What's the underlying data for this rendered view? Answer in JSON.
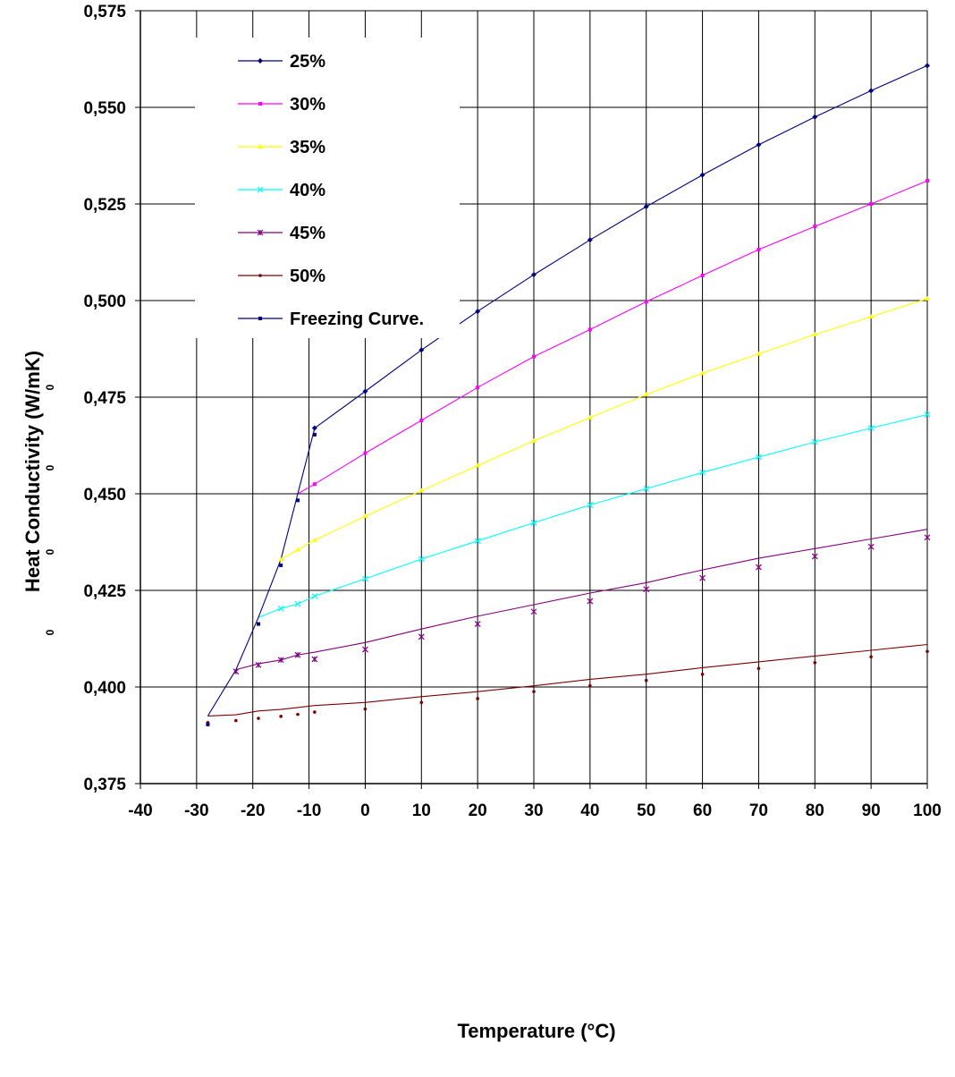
{
  "chart_data": {
    "type": "line",
    "xlabel": "Temperature (°C)",
    "ylabel": "Heat Conductivity (W/mK)",
    "ylabel_artifacts": [
      "0",
      "0",
      "0",
      "0"
    ],
    "xlim": [
      -40,
      100
    ],
    "ylim": [
      0.375,
      0.575
    ],
    "x_ticks": [
      "-40",
      "-30",
      "-20",
      "-10",
      "0",
      "10",
      "20",
      "30",
      "40",
      "50",
      "60",
      "70",
      "80",
      "90",
      "100"
    ],
    "y_ticks": [
      "0,375",
      "0,400",
      "0,425",
      "0,450",
      "0,475",
      "0,500",
      "0,525",
      "0,550",
      "0,575"
    ],
    "grid": true,
    "legend_position": "top-left",
    "series": [
      {
        "name": "25%",
        "color": "#000080",
        "marker": "diamond",
        "line": [
          [
            -9,
            0.467
          ],
          [
            0,
            0.4765
          ],
          [
            10,
            0.4872
          ],
          [
            20,
            0.4972
          ],
          [
            30,
            0.5067
          ],
          [
            40,
            0.5157
          ],
          [
            50,
            0.5243
          ],
          [
            60,
            0.5325
          ],
          [
            70,
            0.5403
          ],
          [
            80,
            0.5475
          ],
          [
            90,
            0.5543
          ],
          [
            100,
            0.5608
          ]
        ],
        "points": [
          [
            -9,
            0.467
          ],
          [
            0,
            0.4765
          ],
          [
            10,
            0.4872
          ],
          [
            20,
            0.4972
          ],
          [
            30,
            0.5067
          ],
          [
            40,
            0.5157
          ],
          [
            50,
            0.5243
          ],
          [
            60,
            0.5325
          ],
          [
            70,
            0.5403
          ],
          [
            80,
            0.5475
          ],
          [
            90,
            0.5543
          ],
          [
            100,
            0.5608
          ]
        ]
      },
      {
        "name": "30%",
        "color": "#FF00FF",
        "marker": "square",
        "line": [
          [
            -12,
            0.45
          ],
          [
            -9,
            0.4525
          ],
          [
            0,
            0.4605
          ],
          [
            10,
            0.469
          ],
          [
            20,
            0.4775
          ],
          [
            30,
            0.4855
          ],
          [
            40,
            0.4925
          ],
          [
            50,
            0.4997
          ],
          [
            60,
            0.5065
          ],
          [
            70,
            0.5132
          ],
          [
            80,
            0.5192
          ],
          [
            90,
            0.525
          ],
          [
            100,
            0.531
          ]
        ],
        "points": [
          [
            -9,
            0.4525
          ],
          [
            0,
            0.4605
          ],
          [
            10,
            0.469
          ],
          [
            20,
            0.4775
          ],
          [
            30,
            0.4855
          ],
          [
            40,
            0.4925
          ],
          [
            50,
            0.4997
          ],
          [
            60,
            0.5065
          ],
          [
            70,
            0.5132
          ],
          [
            80,
            0.5192
          ],
          [
            90,
            0.525
          ],
          [
            100,
            0.531
          ]
        ]
      },
      {
        "name": "35%",
        "color": "#FFFF00",
        "marker": "triangle",
        "line": [
          [
            -15,
            0.433
          ],
          [
            -12,
            0.4355
          ],
          [
            -9,
            0.438
          ],
          [
            0,
            0.4442
          ],
          [
            10,
            0.4508
          ],
          [
            20,
            0.4573
          ],
          [
            30,
            0.4637
          ],
          [
            40,
            0.4697
          ],
          [
            50,
            0.4757
          ],
          [
            60,
            0.4812
          ],
          [
            70,
            0.4862
          ],
          [
            80,
            0.4912
          ],
          [
            90,
            0.4958
          ],
          [
            100,
            0.5005
          ]
        ],
        "points": [
          [
            -15,
            0.433
          ],
          [
            -12,
            0.4355
          ],
          [
            -9,
            0.438
          ],
          [
            0,
            0.4442
          ],
          [
            10,
            0.4508
          ],
          [
            20,
            0.4573
          ],
          [
            30,
            0.4637
          ],
          [
            40,
            0.4697
          ],
          [
            50,
            0.4757
          ],
          [
            60,
            0.4812
          ],
          [
            70,
            0.4862
          ],
          [
            80,
            0.4912
          ],
          [
            90,
            0.4958
          ],
          [
            100,
            0.5005
          ]
        ]
      },
      {
        "name": "40%",
        "color": "#00FFFF",
        "marker": "x",
        "line": [
          [
            -19,
            0.418
          ],
          [
            -15,
            0.4203
          ],
          [
            -12,
            0.4215
          ],
          [
            -9,
            0.4235
          ],
          [
            0,
            0.428
          ],
          [
            10,
            0.4331
          ],
          [
            20,
            0.4378
          ],
          [
            30,
            0.4425
          ],
          [
            40,
            0.4471
          ],
          [
            50,
            0.4513
          ],
          [
            60,
            0.4555
          ],
          [
            70,
            0.4595
          ],
          [
            80,
            0.4634
          ],
          [
            90,
            0.467
          ],
          [
            100,
            0.4705
          ]
        ],
        "points": [
          [
            -15,
            0.4203
          ],
          [
            -12,
            0.4215
          ],
          [
            -9,
            0.4235
          ],
          [
            0,
            0.428
          ],
          [
            10,
            0.4331
          ],
          [
            20,
            0.4378
          ],
          [
            30,
            0.4425
          ],
          [
            40,
            0.4471
          ],
          [
            50,
            0.4513
          ],
          [
            60,
            0.4555
          ],
          [
            70,
            0.4595
          ],
          [
            80,
            0.4634
          ],
          [
            90,
            0.467
          ],
          [
            100,
            0.4705
          ]
        ]
      },
      {
        "name": "45%",
        "color": "#800080",
        "marker": "star",
        "line": [
          [
            -23,
            0.4045
          ],
          [
            -19,
            0.406
          ],
          [
            -15,
            0.407
          ],
          [
            -12,
            0.4083
          ],
          [
            -9,
            0.409
          ],
          [
            0,
            0.4115
          ],
          [
            10,
            0.415
          ],
          [
            20,
            0.4183
          ],
          [
            30,
            0.4213
          ],
          [
            40,
            0.4243
          ],
          [
            50,
            0.427
          ],
          [
            60,
            0.4303
          ],
          [
            70,
            0.4333
          ],
          [
            80,
            0.4358
          ],
          [
            90,
            0.4383
          ],
          [
            100,
            0.4408
          ]
        ],
        "points": [
          [
            -23,
            0.404
          ],
          [
            -19,
            0.4057
          ],
          [
            -15,
            0.407
          ],
          [
            -12,
            0.4083
          ],
          [
            -9,
            0.4072
          ],
          [
            0,
            0.4097
          ],
          [
            10,
            0.413
          ],
          [
            20,
            0.4163
          ],
          [
            30,
            0.4195
          ],
          [
            40,
            0.4222
          ],
          [
            50,
            0.4253
          ],
          [
            60,
            0.4282
          ],
          [
            70,
            0.431
          ],
          [
            80,
            0.4338
          ],
          [
            90,
            0.4363
          ],
          [
            100,
            0.4387
          ]
        ]
      },
      {
        "name": "50%",
        "color": "#800000",
        "marker": "dot",
        "line": [
          [
            -28,
            0.3925
          ],
          [
            -23,
            0.3928
          ],
          [
            -19,
            0.3938
          ],
          [
            -15,
            0.3942
          ],
          [
            -12,
            0.3947
          ],
          [
            -9,
            0.3952
          ],
          [
            0,
            0.396
          ],
          [
            10,
            0.3975
          ],
          [
            20,
            0.3988
          ],
          [
            30,
            0.4003
          ],
          [
            40,
            0.402
          ],
          [
            50,
            0.4033
          ],
          [
            60,
            0.405
          ],
          [
            70,
            0.4065
          ],
          [
            80,
            0.408
          ],
          [
            90,
            0.4095
          ],
          [
            100,
            0.411
          ]
        ],
        "points": [
          [
            -28,
            0.3908
          ],
          [
            -23,
            0.3913
          ],
          [
            -19,
            0.3919
          ],
          [
            -15,
            0.3924
          ],
          [
            -12,
            0.3929
          ],
          [
            -9,
            0.3935
          ],
          [
            0,
            0.3943
          ],
          [
            10,
            0.396
          ],
          [
            20,
            0.397
          ],
          [
            30,
            0.3988
          ],
          [
            40,
            0.4003
          ],
          [
            50,
            0.4017
          ],
          [
            60,
            0.4033
          ],
          [
            70,
            0.4048
          ],
          [
            80,
            0.4063
          ],
          [
            90,
            0.4078
          ],
          [
            100,
            0.4092
          ]
        ]
      },
      {
        "name": "Freezing Curve.",
        "color": "#000080",
        "marker": "square",
        "line": [
          [
            -28,
            0.3925
          ],
          [
            -23,
            0.4045
          ],
          [
            -19,
            0.418
          ],
          [
            -15,
            0.433
          ],
          [
            -12,
            0.45
          ],
          [
            -9,
            0.467
          ]
        ],
        "points": [
          [
            -28,
            0.3903
          ],
          [
            -19,
            0.4163
          ],
          [
            -15,
            0.4315
          ],
          [
            -12,
            0.4483
          ],
          [
            -9,
            0.4653
          ]
        ]
      }
    ]
  }
}
